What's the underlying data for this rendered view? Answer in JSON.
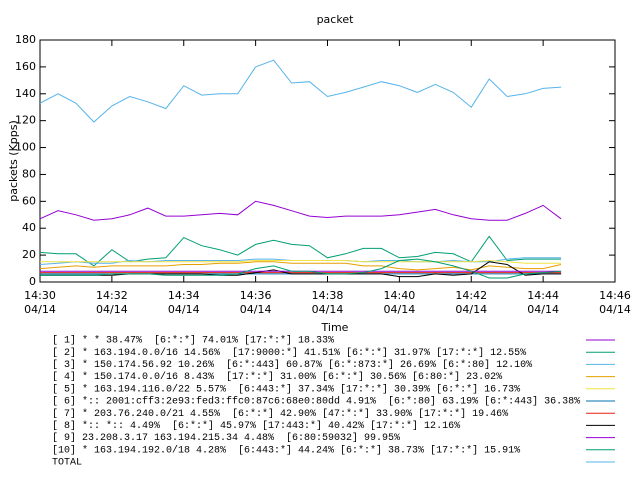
{
  "chart_data": {
    "type": "line",
    "title": "packet",
    "y_label": "packets (Kpps)",
    "x_label": "Time",
    "x": [
      "14:30:00",
      "14:30:30",
      "14:31:00",
      "14:31:30",
      "14:32:00",
      "14:32:30",
      "14:33:00",
      "14:33:30",
      "14:34:00",
      "14:34:30",
      "14:35:00",
      "14:35:30",
      "14:36:00",
      "14:36:30",
      "14:37:00",
      "14:37:30",
      "14:38:00",
      "14:38:30",
      "14:39:00",
      "14:39:30",
      "14:40:00",
      "14:40:30",
      "14:41:00",
      "14:41:30",
      "14:42:00",
      "14:42:30",
      "14:43:00",
      "14:43:30",
      "14:44:00",
      "14:44:30"
    ],
    "xlim": [
      "14:30:00",
      "14:46:00"
    ],
    "xticks": [
      {
        "value": "14:30:00",
        "label": "14:30",
        "date": "04/14"
      },
      {
        "value": "14:32:00",
        "label": "14:32",
        "date": "04/14"
      },
      {
        "value": "14:34:00",
        "label": "14:34",
        "date": "04/14"
      },
      {
        "value": "14:36:00",
        "label": "14:36",
        "date": "04/14"
      },
      {
        "value": "14:38:00",
        "label": "14:38",
        "date": "04/14"
      },
      {
        "value": "14:40:00",
        "label": "14:40",
        "date": "04/14"
      },
      {
        "value": "14:42:00",
        "label": "14:42",
        "date": "04/14"
      },
      {
        "value": "14:44:00",
        "label": "14:44",
        "date": "04/14"
      },
      {
        "value": "14:46:00",
        "label": "14:46",
        "date": "04/14"
      }
    ],
    "ylim": [
      0,
      180
    ],
    "yticks": [
      0,
      20,
      40,
      60,
      80,
      100,
      120,
      140,
      160,
      180
    ],
    "series": [
      {
        "name": "[ 1] * * 38.47%  [6:*:*] 74.01% [17:*:*] 18.33%",
        "color": "#9400d3",
        "values": [
          47,
          53,
          50,
          46,
          47,
          50,
          55,
          49,
          49,
          50,
          51,
          50,
          60,
          57,
          53,
          49,
          48,
          49,
          49,
          49,
          50,
          52,
          54,
          50,
          47,
          46,
          46,
          51,
          57,
          47
        ]
      },
      {
        "name": "[ 2] * 163.194.0.0/16 14.56%  [17:9000:*] 41.51% [6:*:*] 31.97% [17:*:*] 12.55%",
        "color": "#009e73",
        "values": [
          22,
          21,
          21,
          12,
          24,
          15,
          17,
          18,
          33,
          27,
          24,
          20,
          28,
          31,
          28,
          27,
          18,
          21,
          25,
          25,
          18,
          19,
          22,
          21,
          15,
          34,
          16,
          17,
          17,
          17
        ]
      },
      {
        "name": "[ 3] * 150.174.56.92 10.26%  [6:*:443] 60.87% [6:*:873:*] 26.69% [6:*:80] 12.10%",
        "color": "#56b4e9",
        "values": [
          13,
          14,
          15,
          14,
          14,
          16,
          15,
          16,
          16,
          16,
          16,
          16,
          17,
          17,
          16,
          16,
          16,
          16,
          15,
          16,
          16,
          15,
          15,
          16,
          15,
          15,
          17,
          18,
          18,
          18
        ]
      },
      {
        "name": "[ 4] * 150.174.0.0/16 8.43%  [17:*:*] 31.00% [6:*:*] 30.56% [6:80:*] 23.02%",
        "color": "#e69f00",
        "values": [
          10,
          11,
          12,
          11,
          12,
          12,
          12,
          12,
          13,
          13,
          14,
          14,
          15,
          15,
          14,
          14,
          14,
          14,
          12,
          12,
          10,
          9,
          10,
          11,
          9,
          12,
          11,
          10,
          10,
          13
        ]
      },
      {
        "name": "[ 5] * 163.194.116.0/22 5.57%  [6:443:*] 37.34% [17:*:*] 30.39% [6:*:*] 16.73%",
        "color": "#f0e442",
        "values": [
          15,
          15,
          15,
          15,
          15,
          15,
          15,
          15,
          15,
          15,
          15,
          15,
          16,
          16,
          16,
          16,
          16,
          16,
          15,
          15,
          15,
          15,
          15,
          15,
          15,
          16,
          15,
          14,
          14,
          14
        ]
      },
      {
        "name": "[ 6] *:: 2001:cff3:2e93:fed3:ffc0:87c6:68e0:80dd 4.91%  [6:*:80] 63.19% [6:*:443] 36.38%",
        "color": "#0072b2",
        "values": [
          6,
          6,
          6,
          6,
          6,
          6,
          6,
          6,
          6,
          6,
          6,
          6,
          6,
          6,
          6,
          6,
          6,
          6,
          6,
          6,
          6,
          6,
          6,
          6,
          6,
          6,
          6,
          6,
          6,
          6
        ]
      },
      {
        "name": "[ 7] * 203.76.240.0/21 4.55%  [6:*:*] 42.90% [47:*:*] 33.90% [17:*:*] 19.46%",
        "color": "#e51e10",
        "values": [
          7,
          7,
          7,
          7,
          7,
          7,
          7,
          7,
          7,
          7,
          7,
          7,
          7,
          7,
          7,
          7,
          7,
          7,
          7,
          7,
          7,
          7,
          7,
          7,
          7,
          7,
          7,
          7,
          7,
          7
        ]
      },
      {
        "name": "[ 8] *:: *:: 4.49%  [6:*:*] 45.97% [17:443:*] 40.42% [17:*:*] 12.16%",
        "color": "#000000",
        "values": [
          5,
          5,
          5,
          5,
          5,
          6,
          6,
          6,
          6,
          6,
          5,
          5,
          7,
          9,
          6,
          6,
          6,
          6,
          6,
          6,
          4,
          4,
          6,
          5,
          6,
          15,
          13,
          5,
          6,
          6
        ]
      },
      {
        "name": "[ 9] 23.208.3.17 163.194.215.34 4.48%  [6:80:59032] 99.95%",
        "color": "#9400d3",
        "values": [
          8,
          8,
          8,
          8,
          8,
          8,
          8,
          8,
          8,
          8,
          8,
          8,
          8,
          8,
          8,
          8,
          8,
          8,
          8,
          8,
          8,
          8,
          8,
          8,
          8,
          8,
          8,
          8,
          8,
          8
        ]
      },
      {
        "name": "[10] * 163.194.192.0/18 4.28%  [6:443:*] 44.24% [6:*:*] 38.73% [17:*:*] 15.91%",
        "color": "#009e73",
        "values": [
          5,
          5,
          5,
          5,
          6,
          6,
          6,
          5,
          5,
          5,
          5,
          6,
          10,
          12,
          8,
          8,
          6,
          6,
          7,
          10,
          16,
          17,
          15,
          12,
          8,
          3,
          3,
          6,
          7,
          8
        ]
      },
      {
        "name": "TOTAL",
        "color": "#56b4e9",
        "values": [
          133,
          140,
          133,
          119,
          131,
          138,
          134,
          129,
          146,
          139,
          140,
          140,
          160,
          165,
          148,
          149,
          138,
          141,
          145,
          149,
          146,
          141,
          147,
          141,
          130,
          151,
          138,
          140,
          144,
          145
        ]
      }
    ]
  }
}
